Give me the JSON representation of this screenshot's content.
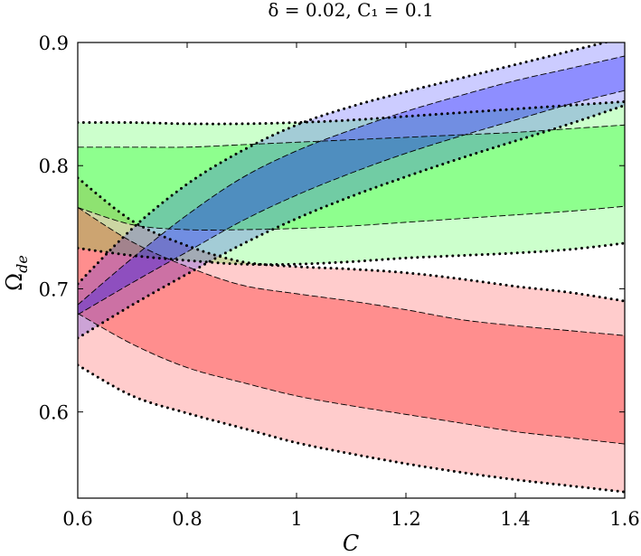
{
  "chart_data": {
    "type": "area",
    "title": "δ = 0.02, C₁ = 0.1",
    "xlabel": "C",
    "ylabel": "Ω_de",
    "ylabel_main": "Ω",
    "ylabel_sub": "de",
    "xlim": [
      0.6,
      1.6
    ],
    "ylim": [
      0.53,
      0.9
    ],
    "xticks": [
      0.6,
      0.8,
      1.0,
      1.2,
      1.4,
      1.6
    ],
    "xtick_labels": [
      "0.6",
      "0.8",
      "1",
      "1.2",
      "1.4",
      "1.6"
    ],
    "yticks": [
      0.6,
      0.7,
      0.8,
      0.9
    ],
    "ytick_labels": [
      "0.6",
      "0.7",
      "0.8",
      "0.9"
    ],
    "grid": false,
    "x": [
      0.6,
      0.7,
      0.8,
      0.9,
      1.0,
      1.1,
      1.2,
      1.3,
      1.4,
      1.5,
      1.6
    ],
    "series": [
      {
        "name": "red",
        "color": "#ff0000",
        "outer_upper": [
          0.79,
          0.755,
          0.735,
          0.722,
          0.718,
          0.716,
          0.713,
          0.708,
          0.702,
          0.697,
          0.69
        ],
        "inner_upper": [
          0.766,
          0.738,
          0.718,
          0.703,
          0.696,
          0.69,
          0.683,
          0.675,
          0.67,
          0.666,
          0.662
        ],
        "inner_lower": [
          0.68,
          0.655,
          0.636,
          0.624,
          0.613,
          0.605,
          0.598,
          0.591,
          0.584,
          0.579,
          0.574
        ],
        "outer_lower": [
          0.638,
          0.613,
          0.599,
          0.587,
          0.575,
          0.566,
          0.558,
          0.551,
          0.545,
          0.54,
          0.535
        ]
      },
      {
        "name": "green",
        "color": "#00ff00",
        "outer_upper": [
          0.835,
          0.835,
          0.834,
          0.834,
          0.835,
          0.837,
          0.84,
          0.843,
          0.846,
          0.849,
          0.852
        ],
        "inner_upper": [
          0.815,
          0.815,
          0.815,
          0.817,
          0.819,
          0.821,
          0.823,
          0.825,
          0.827,
          0.83,
          0.833
        ],
        "inner_lower": [
          0.766,
          0.752,
          0.748,
          0.748,
          0.749,
          0.751,
          0.754,
          0.757,
          0.76,
          0.763,
          0.767
        ],
        "outer_lower": [
          0.733,
          0.727,
          0.723,
          0.72,
          0.72,
          0.722,
          0.725,
          0.727,
          0.729,
          0.732,
          0.737
        ]
      },
      {
        "name": "blue",
        "color": "#0000ff",
        "outer_upper": [
          0.704,
          0.749,
          0.785,
          0.812,
          0.833,
          0.848,
          0.86,
          0.871,
          0.882,
          0.893,
          0.904
        ],
        "inner_upper": [
          0.687,
          0.725,
          0.76,
          0.79,
          0.812,
          0.829,
          0.844,
          0.857,
          0.869,
          0.879,
          0.889
        ],
        "inner_lower": [
          0.679,
          0.705,
          0.73,
          0.755,
          0.776,
          0.794,
          0.81,
          0.824,
          0.837,
          0.85,
          0.861
        ],
        "outer_lower": [
          0.66,
          0.687,
          0.712,
          0.736,
          0.757,
          0.775,
          0.791,
          0.806,
          0.82,
          0.834,
          0.849
        ]
      }
    ]
  }
}
